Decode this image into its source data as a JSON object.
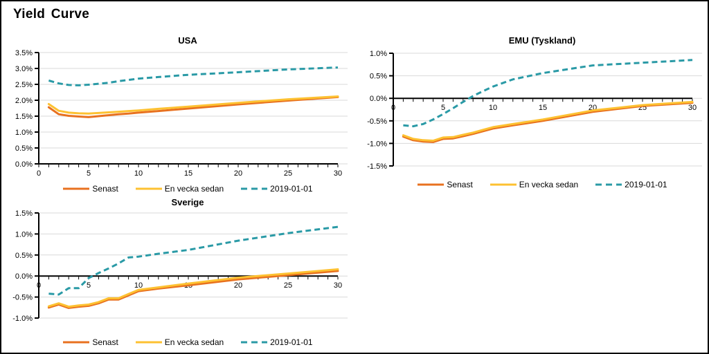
{
  "page_title": "Yield Curve",
  "colors": {
    "senast": "#E8711F",
    "en_vecka_sedan": "#FDC131",
    "jan2019": "#2A9AA6",
    "gridline": "#D9D9D9",
    "axis": "#000000",
    "background": "#FFFFFF",
    "text": "#000000"
  },
  "legend_labels": [
    "Senast",
    "En vecka sedan",
    "2019-01-01"
  ],
  "chart_data": [
    {
      "type": "line",
      "title": "USA",
      "xlabel": "",
      "ylabel": "",
      "grid": true,
      "legend_position": "bottom",
      "xlim": [
        0,
        30
      ],
      "xticks": [
        0,
        5,
        10,
        15,
        20,
        25,
        30
      ],
      "ylim": [
        0.0,
        3.5
      ],
      "ytick_step": 0.5,
      "ytick_labels": [
        "3.5%",
        "3.0%",
        "2.5%",
        "2.0%",
        "1.5%",
        "1.0%",
        "0.5%",
        "0.0%"
      ],
      "x": [
        1,
        2,
        3,
        4,
        5,
        6,
        7,
        8,
        9,
        10,
        12,
        15,
        20,
        25,
        30
      ],
      "series": [
        {
          "name": "Senast",
          "color_key": "senast",
          "style": "solid",
          "values": [
            1.78,
            1.56,
            1.51,
            1.49,
            1.47,
            1.5,
            1.53,
            1.56,
            1.58,
            1.61,
            1.66,
            1.74,
            1.87,
            1.99,
            2.1
          ]
        },
        {
          "name": "En vecka sedan",
          "color_key": "en_vecka_sedan",
          "style": "solid",
          "values": [
            1.88,
            1.67,
            1.61,
            1.59,
            1.58,
            1.6,
            1.62,
            1.64,
            1.66,
            1.68,
            1.73,
            1.8,
            1.92,
            2.03,
            2.12
          ]
        },
        {
          "name": "2019-01-01",
          "color_key": "jan2019",
          "style": "dashed",
          "values": [
            2.62,
            2.53,
            2.48,
            2.47,
            2.49,
            2.52,
            2.55,
            2.6,
            2.64,
            2.68,
            2.73,
            2.8,
            2.88,
            2.97,
            3.03
          ]
        }
      ]
    },
    {
      "type": "line",
      "title": "EMU (Tyskland)",
      "xlabel": "",
      "ylabel": "",
      "grid": true,
      "legend_position": "bottom",
      "xlim": [
        0,
        30
      ],
      "xticks": [
        0,
        5,
        10,
        15,
        20,
        25,
        30
      ],
      "ylim": [
        -1.5,
        1.0
      ],
      "ytick_step": 0.5,
      "ytick_labels": [
        "1.0%",
        "0.5%",
        "0.0%",
        "-0.5%",
        "-1.0%",
        "-1.5%"
      ],
      "x": [
        1,
        2,
        3,
        4,
        5,
        6,
        7,
        8,
        9,
        10,
        12,
        15,
        20,
        25,
        30
      ],
      "series": [
        {
          "name": "Senast",
          "color_key": "senast",
          "style": "solid",
          "values": [
            -0.85,
            -0.93,
            -0.96,
            -0.97,
            -0.9,
            -0.89,
            -0.84,
            -0.79,
            -0.73,
            -0.67,
            -0.6,
            -0.5,
            -0.3,
            -0.17,
            -0.1
          ]
        },
        {
          "name": "En vecka sedan",
          "color_key": "en_vecka_sedan",
          "style": "solid",
          "values": [
            -0.82,
            -0.9,
            -0.93,
            -0.94,
            -0.87,
            -0.86,
            -0.81,
            -0.76,
            -0.7,
            -0.64,
            -0.57,
            -0.47,
            -0.27,
            -0.15,
            -0.08
          ]
        },
        {
          "name": "2019-01-01",
          "color_key": "jan2019",
          "style": "dashed",
          "values": [
            -0.6,
            -0.62,
            -0.57,
            -0.47,
            -0.35,
            -0.22,
            -0.08,
            0.05,
            0.16,
            0.26,
            0.42,
            0.56,
            0.73,
            0.79,
            0.85
          ]
        }
      ]
    },
    {
      "type": "line",
      "title": "Sverige",
      "xlabel": "",
      "ylabel": "",
      "grid": true,
      "legend_position": "bottom",
      "xlim": [
        0,
        30
      ],
      "xticks": [
        0,
        5,
        10,
        15,
        20,
        25,
        30
      ],
      "ylim": [
        -1.0,
        1.5
      ],
      "ytick_step": 0.5,
      "ytick_labels": [
        "1.5%",
        "1.0%",
        "0.5%",
        "0.0%",
        "-0.5%",
        "-1.0%"
      ],
      "x": [
        1,
        2,
        3,
        4,
        5,
        6,
        7,
        8,
        9,
        10,
        12,
        15,
        20,
        25,
        30
      ],
      "series": [
        {
          "name": "Senast",
          "color_key": "senast",
          "style": "solid",
          "values": [
            -0.75,
            -0.68,
            -0.76,
            -0.73,
            -0.71,
            -0.65,
            -0.56,
            -0.56,
            -0.46,
            -0.36,
            -0.3,
            -0.22,
            -0.08,
            0.02,
            0.12
          ]
        },
        {
          "name": "En vecka sedan",
          "color_key": "en_vecka_sedan",
          "style": "solid",
          "values": [
            -0.72,
            -0.65,
            -0.73,
            -0.7,
            -0.68,
            -0.62,
            -0.53,
            -0.53,
            -0.43,
            -0.33,
            -0.27,
            -0.18,
            -0.04,
            0.06,
            0.16
          ]
        },
        {
          "name": "2019-01-01",
          "color_key": "jan2019",
          "style": "dashed",
          "values": [
            -0.42,
            -0.44,
            -0.29,
            -0.29,
            -0.05,
            0.07,
            0.18,
            0.3,
            0.44,
            0.46,
            0.53,
            0.62,
            0.84,
            1.02,
            1.17
          ]
        }
      ]
    }
  ]
}
